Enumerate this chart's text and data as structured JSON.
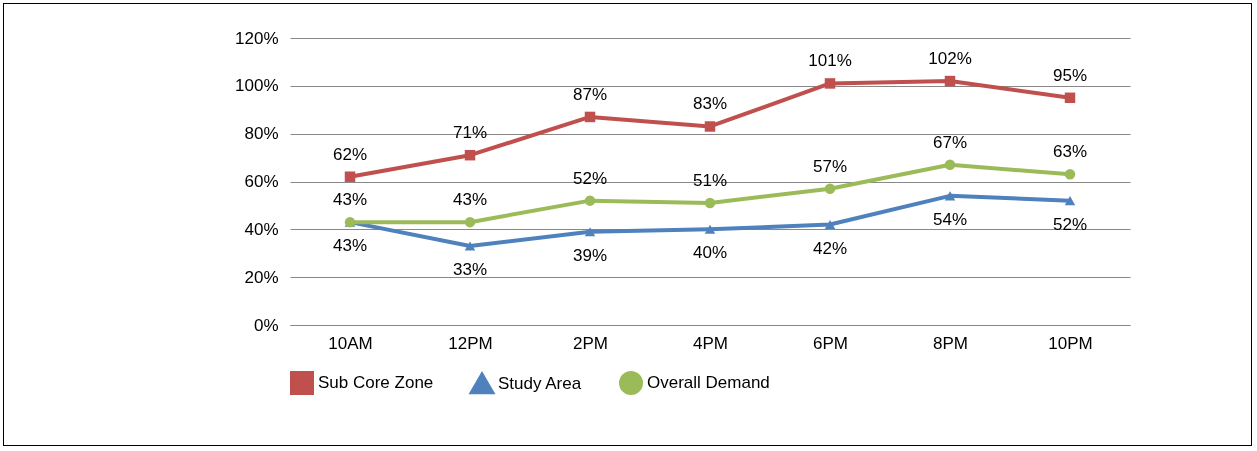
{
  "chart_data": {
    "type": "line",
    "categories": [
      "10AM",
      "12PM",
      "2PM",
      "4PM",
      "6PM",
      "8PM",
      "10PM"
    ],
    "series": [
      {
        "name": "Sub Core Zone",
        "color": "#c0504d",
        "marker": "square",
        "values": [
          62,
          71,
          87,
          83,
          101,
          102,
          95
        ],
        "value_labels": [
          "62%",
          "71%",
          "87%",
          "83%",
          "101%",
          "102%",
          "95%"
        ]
      },
      {
        "name": "Study Area",
        "color": "#4f81bd",
        "marker": "triangle",
        "values": [
          43,
          33,
          39,
          40,
          42,
          54,
          52
        ],
        "value_labels": [
          "43%",
          "33%",
          "39%",
          "40%",
          "42%",
          "54%",
          "52%"
        ]
      },
      {
        "name": "Overall Demand",
        "color": "#9bbb59",
        "marker": "circle",
        "values": [
          43,
          43,
          52,
          51,
          57,
          67,
          63
        ],
        "value_labels": [
          "43%",
          "43%",
          "52%",
          "51%",
          "57%",
          "67%",
          "63%"
        ]
      }
    ],
    "ylim": [
      0,
      120
    ],
    "yticks": [
      {
        "value": 0,
        "label": "0%"
      },
      {
        "value": 20,
        "label": "20%"
      },
      {
        "value": 40,
        "label": "40%"
      },
      {
        "value": 60,
        "label": "60%"
      },
      {
        "value": 80,
        "label": "80%"
      },
      {
        "value": 100,
        "label": "100%"
      },
      {
        "value": 120,
        "label": "120%"
      }
    ],
    "grid": "y",
    "legend": "bottom",
    "line_style": "solid"
  }
}
